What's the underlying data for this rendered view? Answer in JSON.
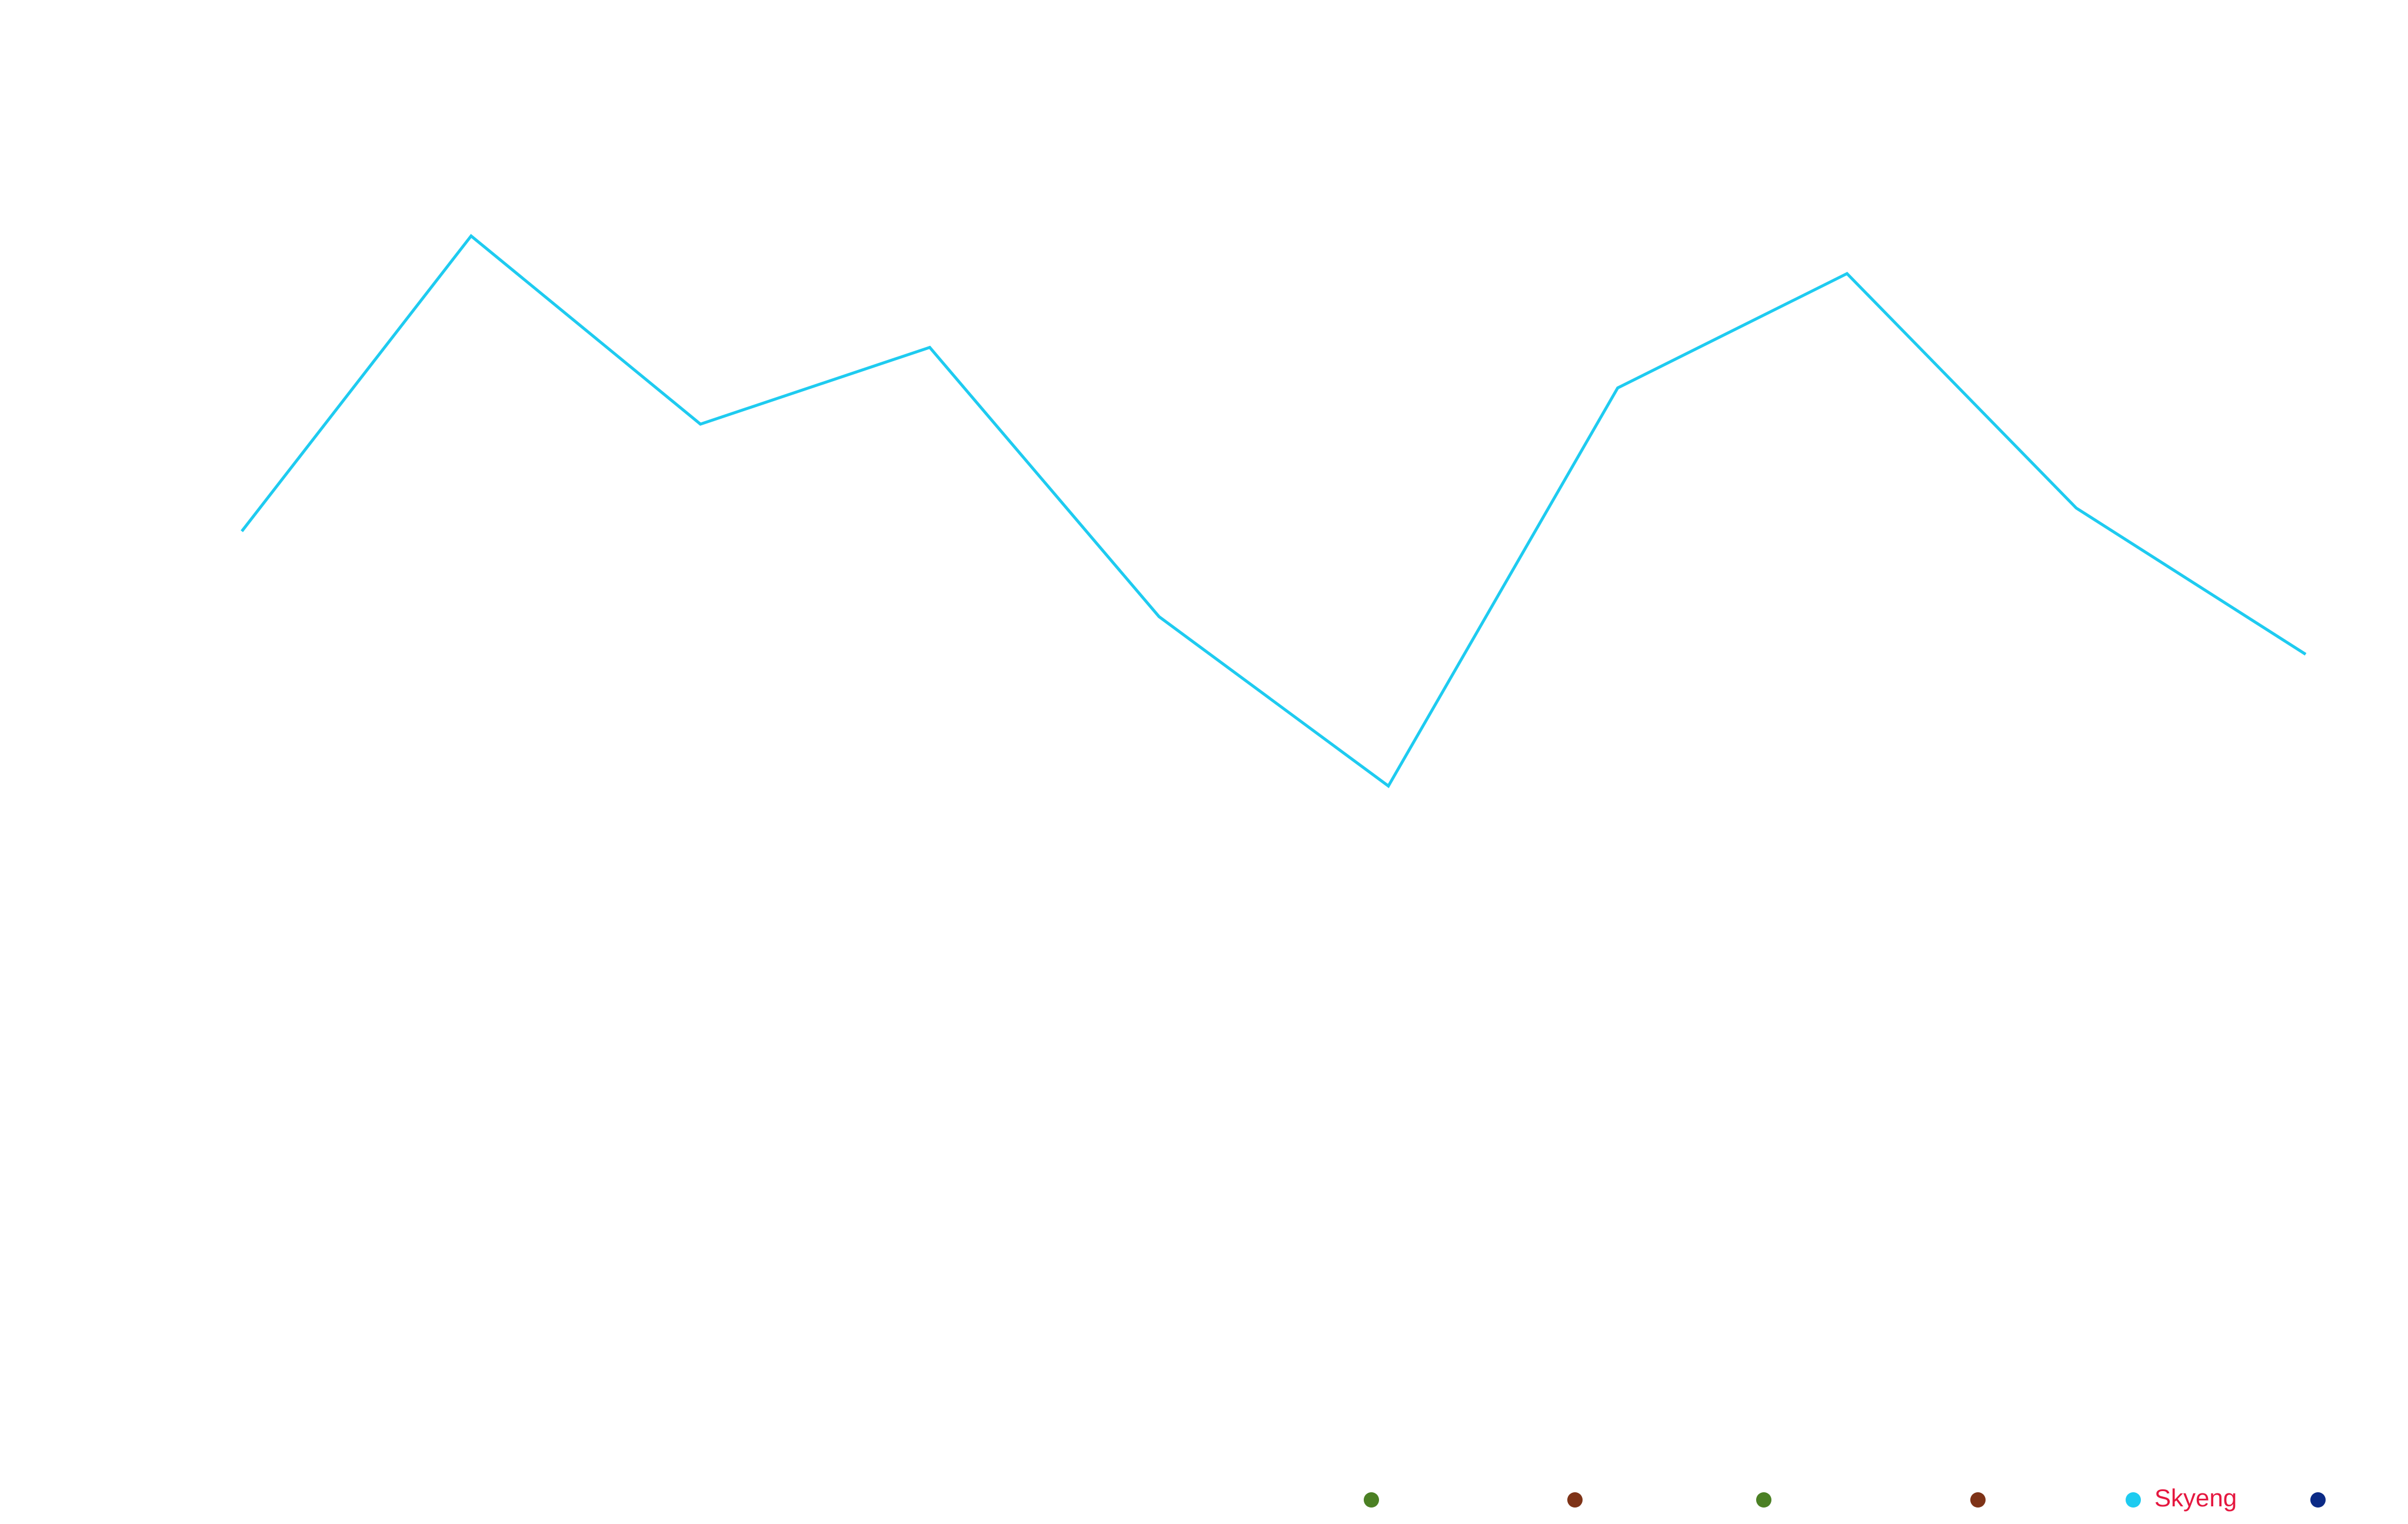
{
  "chart_data": {
    "type": "line",
    "categories": [
      null,
      null,
      null,
      null,
      null,
      null,
      null,
      null,
      null,
      null
    ],
    "ylim": [
      0,
      100
    ],
    "series": [
      {
        "name": "Skyeng",
        "color": "#1ecbf0",
        "values": [
          63.3,
          83.7,
          70.7,
          76.0,
          57.4,
          45.7,
          73.2,
          81.1,
          64.9,
          54.8
        ]
      }
    ],
    "legend_text_color": "#e5173f",
    "hidden_series_colors": [
      "#4b8024",
      "#7e3317",
      "#4b8024",
      "#7e3317",
      "#0b2a86"
    ]
  }
}
